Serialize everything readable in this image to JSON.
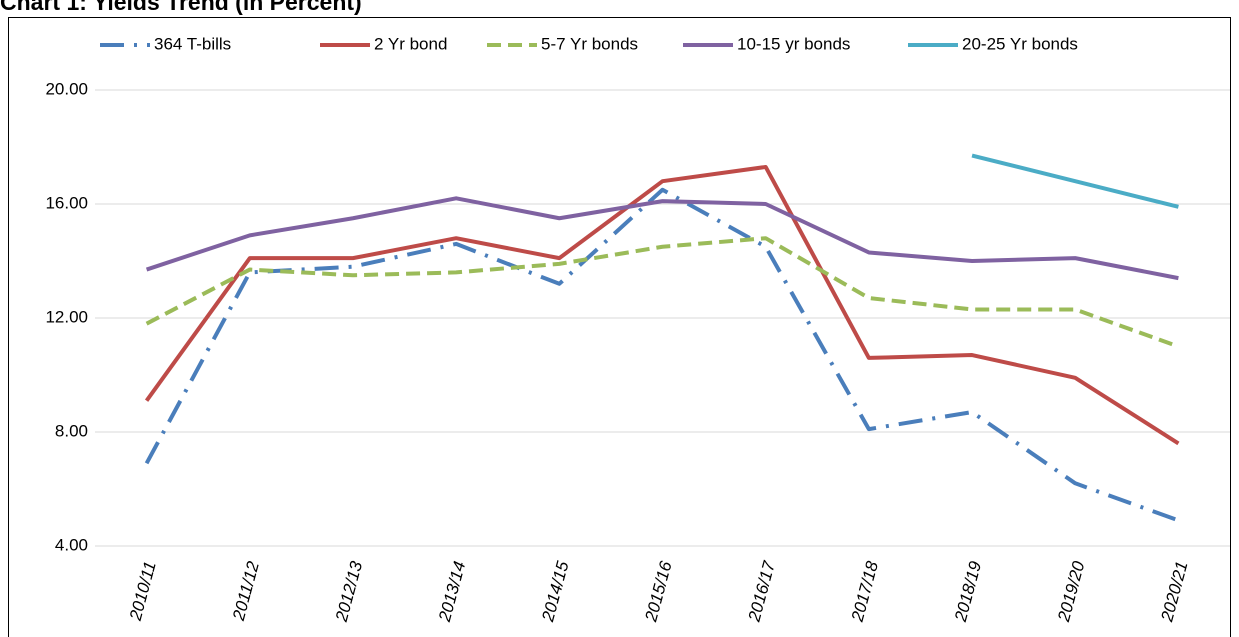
{
  "chart_data": {
    "type": "line",
    "title": "Chart 1: Yields Trend (in Percent)",
    "categories": [
      "2010/11",
      "2011/12",
      "2012/13",
      "2013/14",
      "2014/15",
      "2015/16",
      "2016/17",
      "2017/18",
      "2018/19",
      "2019/20",
      "2020/21"
    ],
    "series": [
      {
        "name": "364 T-bills",
        "color": "#4a7ebb",
        "dash": "dashdot",
        "values": [
          6.9,
          13.6,
          13.8,
          14.6,
          13.2,
          16.5,
          14.5,
          8.1,
          8.7,
          6.2,
          4.9
        ]
      },
      {
        "name": "2 Yr bond",
        "color": "#be4b48",
        "dash": "solid",
        "values": [
          9.1,
          14.1,
          14.1,
          14.8,
          14.1,
          16.8,
          17.3,
          10.6,
          10.7,
          9.9,
          7.6
        ]
      },
      {
        "name": "5-7 Yr bonds",
        "color": "#9bbb59",
        "dash": "dashed",
        "values": [
          11.8,
          13.7,
          13.5,
          13.6,
          13.9,
          14.5,
          14.8,
          12.7,
          12.3,
          12.3,
          11.0
        ]
      },
      {
        "name": "10-15 yr bonds",
        "color": "#7f62a1",
        "dash": "solid",
        "values": [
          13.7,
          14.9,
          15.5,
          16.2,
          15.5,
          16.1,
          16.0,
          14.3,
          14.0,
          14.1,
          13.4
        ]
      },
      {
        "name": "20-25 Yr bonds",
        "color": "#4bacc6",
        "dash": "solid",
        "values": [
          null,
          null,
          null,
          null,
          null,
          null,
          null,
          null,
          17.7,
          16.8,
          15.9
        ]
      }
    ],
    "ylim": [
      4,
      22
    ],
    "yticks": [
      {
        "value": 4,
        "label": "4.00"
      },
      {
        "value": 8,
        "label": "8.00"
      },
      {
        "value": 12,
        "label": "12.00"
      },
      {
        "value": 16,
        "label": "16.00"
      },
      {
        "value": 20,
        "label": "20.00"
      }
    ],
    "grid": true,
    "legend": "top"
  }
}
